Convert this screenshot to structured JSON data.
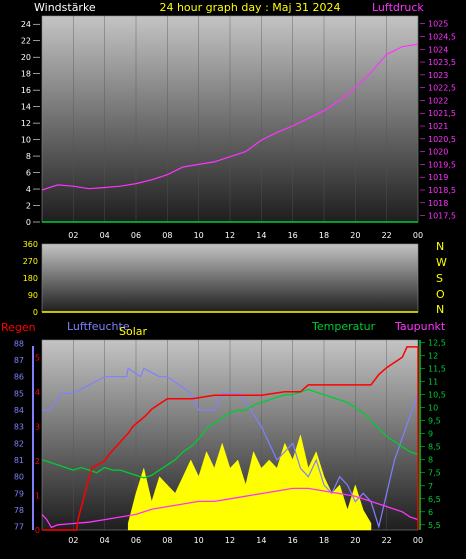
{
  "header": {
    "left_label": "Windstärke",
    "title": "24 hour graph day : Maj 31 2024",
    "right_label": "Luftdruck"
  },
  "compass": [
    "N",
    "W",
    "S",
    "O",
    "N"
  ],
  "colors": {
    "title": "#ffff00",
    "windstaerke": "#ffffff",
    "luftdruck": "#ff33ff",
    "winddir": "#ffff00",
    "regen": "#ff0000",
    "luftfeuchte": "#8080ff",
    "solar": "#ffff00",
    "temperatur": "#00cc33",
    "taupunkt": "#ff33ff"
  },
  "chart_data": [
    {
      "type": "line",
      "x_ticks": [
        "02",
        "04",
        "06",
        "08",
        "10",
        "12",
        "14",
        "16",
        "18",
        "20",
        "22",
        "00"
      ],
      "y_left": {
        "label": "Windstärke",
        "ticks": [
          "0",
          "2",
          "4",
          "6",
          "8",
          "10",
          "12",
          "14",
          "16",
          "18",
          "20",
          "22",
          "24"
        ],
        "range": [
          0,
          25
        ]
      },
      "y_right": {
        "label": "Luftdruck",
        "ticks": [
          "1017,5",
          "1018",
          "1018,5",
          "1019",
          "1019,5",
          "1020",
          "1020,5",
          "1021",
          "1021,5",
          "1022",
          "1022,5",
          "1023",
          "1023,5",
          "1024",
          "1024,5",
          "1025"
        ],
        "range": [
          1017.25,
          1025.3
        ]
      },
      "series": [
        {
          "name": "Luftdruck",
          "axis": "right",
          "x": [
            0,
            1,
            2,
            3,
            4,
            5,
            6,
            7,
            8,
            9,
            10,
            11,
            12,
            13,
            14,
            15,
            16,
            17,
            18,
            19,
            20,
            21,
            22,
            23,
            24
          ],
          "y": [
            1018.5,
            1018.7,
            1018.65,
            1018.55,
            1018.6,
            1018.65,
            1018.75,
            1018.9,
            1019.1,
            1019.4,
            1019.5,
            1019.6,
            1019.8,
            1020.0,
            1020.45,
            1020.75,
            1021.0,
            1021.3,
            1021.6,
            1022.0,
            1022.5,
            1023.1,
            1023.8,
            1024.1,
            1024.2
          ]
        },
        {
          "name": "Windstärke",
          "axis": "left",
          "x": [
            0,
            24
          ],
          "y": [
            0,
            0
          ]
        }
      ]
    },
    {
      "type": "line",
      "x_ticks": [],
      "y_left": {
        "ticks": [
          "0",
          "90",
          "180",
          "270",
          "360"
        ],
        "range": [
          0,
          360
        ]
      },
      "series": [
        {
          "name": "Windrichtung",
          "x": [
            0,
            24
          ],
          "y": [
            0,
            0
          ]
        }
      ]
    },
    {
      "type": "line",
      "x_ticks": [
        "02",
        "04",
        "06",
        "08",
        "10",
        "12",
        "14",
        "16",
        "18",
        "20",
        "22",
        "00"
      ],
      "y_left": {
        "label": "Luftfeuchte",
        "ticks": [
          "77",
          "78",
          "79",
          "80",
          "81",
          "82",
          "83",
          "84",
          "85",
          "86",
          "87",
          "88"
        ],
        "range": [
          76.8,
          88.2
        ]
      },
      "y_regen": {
        "label": "Regen",
        "ticks": [
          "0",
          "1",
          "2",
          "3",
          "4",
          "5"
        ],
        "range": [
          0,
          5.5
        ]
      },
      "y_right": {
        "label": "Temperatur",
        "ticks": [
          "5,5",
          "6",
          "6,5",
          "7",
          "7,5",
          "8",
          "8,5",
          "9",
          "9,5",
          "10",
          "10,5",
          "11",
          "11,5",
          "12",
          "12,5"
        ],
        "range": [
          5.3,
          12.6
        ]
      },
      "series": [
        {
          "name": "Luftfeuchte",
          "axis": "left",
          "x": [
            0,
            0.5,
            0.9,
            1.2,
            2,
            4,
            5.4,
            5.5,
            6.3,
            6.5,
            7.5,
            8,
            9.5,
            10,
            11,
            11.5,
            12.5,
            13,
            14,
            14.5,
            15,
            15.5,
            16,
            16.5,
            17,
            17.5,
            18,
            18.5,
            19,
            19.5,
            20,
            20.5,
            21,
            21.5,
            22,
            22.5,
            24
          ],
          "y": [
            84,
            84,
            84.5,
            85,
            85,
            86,
            86,
            86.5,
            86,
            86.5,
            86,
            86,
            85,
            84,
            84,
            85,
            85,
            84.5,
            83,
            82,
            81,
            81.5,
            82,
            80.5,
            80,
            81,
            79.5,
            79,
            80,
            79.5,
            78.5,
            79,
            78.5,
            77,
            79,
            81,
            85
          ]
        },
        {
          "name": "Temperatur",
          "axis": "right",
          "x": [
            0,
            0.5,
            1,
            1.5,
            2,
            2.5,
            3,
            3.5,
            4,
            4.5,
            5,
            5.5,
            6,
            6.5,
            7,
            7.5,
            8,
            8.5,
            9,
            9.5,
            10,
            10.5,
            11,
            11.5,
            12,
            12.5,
            13,
            13.5,
            14,
            14.5,
            15,
            15.5,
            16,
            16.5,
            17,
            17.5,
            18,
            18.5,
            19,
            19.5,
            20,
            20.5,
            21,
            21.5,
            22,
            22.5,
            23,
            23.5,
            24
          ],
          "y": [
            8.0,
            7.9,
            7.8,
            7.7,
            7.6,
            7.7,
            7.6,
            7.5,
            7.7,
            7.6,
            7.6,
            7.5,
            7.4,
            7.3,
            7.4,
            7.6,
            7.8,
            8.0,
            8.3,
            8.5,
            8.8,
            9.2,
            9.4,
            9.6,
            9.8,
            9.9,
            9.9,
            10.1,
            10.2,
            10.3,
            10.4,
            10.5,
            10.5,
            10.6,
            10.7,
            10.6,
            10.5,
            10.4,
            10.3,
            10.2,
            10.0,
            9.8,
            9.5,
            9.2,
            8.9,
            8.7,
            8.5,
            8.3,
            8.2
          ]
        },
        {
          "name": "Taupunkt",
          "axis": "right",
          "x": [
            0,
            0.3,
            0.6,
            1,
            2,
            3,
            4,
            5,
            6,
            7,
            8,
            9,
            10,
            11,
            12,
            13,
            14,
            15,
            16,
            17,
            18,
            19,
            20,
            21,
            22,
            23,
            23.5,
            24
          ],
          "y": [
            5.9,
            5.7,
            5.4,
            5.5,
            5.55,
            5.6,
            5.7,
            5.8,
            5.9,
            6.1,
            6.2,
            6.3,
            6.4,
            6.4,
            6.5,
            6.6,
            6.7,
            6.8,
            6.9,
            6.9,
            6.8,
            6.7,
            6.6,
            6.4,
            6.2,
            6.0,
            5.8,
            5.7
          ]
        },
        {
          "name": "Regen",
          "axis": "regen",
          "x": [
            0,
            2.2,
            2.3,
            3,
            3.2,
            4,
            4.3,
            5.5,
            5.8,
            6.6,
            7,
            8,
            9.6,
            11,
            14,
            15.5,
            16.5,
            17,
            20,
            21,
            21.5,
            22,
            23,
            23.3,
            24,
            24
          ],
          "y": [
            0,
            0,
            0.3,
            1.5,
            1.8,
            2.0,
            2.2,
            2.8,
            3.0,
            3.3,
            3.5,
            3.8,
            3.8,
            3.9,
            3.9,
            4.0,
            4.0,
            4.2,
            4.2,
            4.2,
            4.5,
            4.7,
            5.0,
            5.3,
            5.3,
            0
          ]
        },
        {
          "name": "Solar",
          "axis": "left",
          "x": [
            5.5,
            6,
            6.5,
            7,
            7.5,
            8,
            8.5,
            9,
            9.5,
            10,
            10.5,
            11,
            11.5,
            12,
            12.5,
            13,
            13.5,
            14,
            14.5,
            15,
            15.5,
            16,
            16.5,
            17,
            17.5,
            18,
            18.5,
            19,
            19.5,
            20,
            20.5,
            21
          ],
          "y": [
            77.2,
            79,
            80.5,
            78.5,
            80,
            79.5,
            79,
            80,
            81,
            80,
            81.5,
            80.5,
            82,
            80.5,
            81,
            79.5,
            81.5,
            80.5,
            81,
            80.5,
            82,
            81,
            82.5,
            80.5,
            81.5,
            80,
            79,
            79.5,
            78,
            79.5,
            78,
            77.2
          ]
        }
      ]
    }
  ]
}
